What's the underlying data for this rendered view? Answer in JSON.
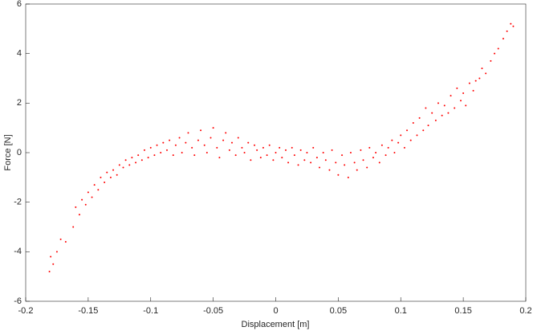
{
  "chart_data": {
    "type": "scatter",
    "xlabel": "Displacement [m]",
    "ylabel": "Force [N]",
    "xlim": [
      -0.2,
      0.2
    ],
    "ylim": [
      -6,
      6
    ],
    "xticks": [
      -0.2,
      -0.15,
      -0.1,
      -0.05,
      0,
      0.05,
      0.1,
      0.15,
      0.2
    ],
    "yticks": [
      -6,
      -4,
      -2,
      0,
      2,
      4,
      6
    ],
    "grid": false,
    "series": [
      {
        "color": "#ff0000",
        "x": [
          -0.181,
          -0.18,
          -0.178,
          -0.175,
          -0.172,
          -0.168,
          -0.162,
          -0.16,
          -0.157,
          -0.155,
          -0.152,
          -0.15,
          -0.147,
          -0.145,
          -0.142,
          -0.14,
          -0.137,
          -0.135,
          -0.132,
          -0.13,
          -0.127,
          -0.125,
          -0.122,
          -0.12,
          -0.117,
          -0.115,
          -0.112,
          -0.11,
          -0.107,
          -0.105,
          -0.102,
          -0.1,
          -0.097,
          -0.095,
          -0.092,
          -0.09,
          -0.087,
          -0.085,
          -0.082,
          -0.08,
          -0.077,
          -0.075,
          -0.072,
          -0.07,
          -0.067,
          -0.065,
          -0.062,
          -0.06,
          -0.057,
          -0.055,
          -0.052,
          -0.05,
          -0.047,
          -0.045,
          -0.042,
          -0.04,
          -0.037,
          -0.035,
          -0.032,
          -0.03,
          -0.027,
          -0.025,
          -0.022,
          -0.02,
          -0.017,
          -0.015,
          -0.012,
          -0.01,
          -0.007,
          -0.005,
          -0.002,
          0,
          0.003,
          0.005,
          0.008,
          0.01,
          0.013,
          0.015,
          0.018,
          0.02,
          0.023,
          0.025,
          0.028,
          0.03,
          0.033,
          0.035,
          0.038,
          0.04,
          0.043,
          0.045,
          0.048,
          0.05,
          0.053,
          0.055,
          0.058,
          0.06,
          0.063,
          0.065,
          0.068,
          0.07,
          0.073,
          0.075,
          0.078,
          0.08,
          0.083,
          0.085,
          0.088,
          0.09,
          0.093,
          0.095,
          0.098,
          0.1,
          0.103,
          0.105,
          0.108,
          0.11,
          0.113,
          0.115,
          0.118,
          0.12,
          0.122,
          0.125,
          0.128,
          0.13,
          0.133,
          0.135,
          0.138,
          0.14,
          0.143,
          0.145,
          0.148,
          0.15,
          0.152,
          0.155,
          0.158,
          0.16,
          0.163,
          0.165,
          0.168,
          0.172,
          0.175,
          0.178,
          0.182,
          0.185,
          0.188,
          0.19
        ],
        "values": [
          -4.8,
          -4.2,
          -4.5,
          -4.0,
          -3.5,
          -3.6,
          -3.0,
          -2.2,
          -2.5,
          -1.9,
          -2.1,
          -1.6,
          -1.8,
          -1.3,
          -1.5,
          -1.0,
          -1.2,
          -0.8,
          -1.0,
          -0.7,
          -0.9,
          -0.5,
          -0.6,
          -0.3,
          -0.5,
          -0.2,
          -0.4,
          -0.1,
          -0.3,
          0.1,
          -0.2,
          0.2,
          -0.1,
          0.3,
          0.0,
          0.4,
          0.1,
          0.5,
          -0.1,
          0.3,
          0.6,
          0.0,
          0.4,
          0.8,
          0.2,
          -0.1,
          0.5,
          0.9,
          0.3,
          0.0,
          0.6,
          1.0,
          0.2,
          -0.2,
          0.5,
          0.8,
          0.1,
          0.4,
          -0.1,
          0.6,
          0.2,
          0.0,
          0.4,
          -0.3,
          0.3,
          0.1,
          -0.2,
          0.2,
          -0.1,
          0.3,
          -0.3,
          0.0,
          0.2,
          -0.2,
          0.1,
          -0.4,
          0.2,
          -0.1,
          -0.5,
          0.1,
          -0.3,
          0.0,
          -0.4,
          0.2,
          -0.2,
          -0.6,
          0.0,
          -0.3,
          -0.7,
          0.1,
          -0.4,
          -0.9,
          -0.1,
          -0.5,
          -1.0,
          0.0,
          -0.4,
          -0.7,
          0.1,
          -0.3,
          -0.6,
          0.2,
          -0.2,
          0.0,
          -0.4,
          0.3,
          -0.1,
          0.2,
          0.5,
          0.0,
          0.4,
          0.7,
          0.2,
          0.9,
          0.5,
          1.2,
          0.7,
          1.4,
          0.9,
          1.8,
          1.1,
          1.6,
          1.3,
          2.0,
          1.5,
          1.9,
          1.6,
          2.3,
          1.8,
          2.6,
          2.1,
          2.4,
          1.9,
          2.8,
          2.5,
          2.9,
          3.0,
          3.4,
          3.2,
          3.7,
          4.0,
          4.2,
          4.6,
          4.9,
          5.2,
          5.1
        ]
      }
    ]
  }
}
